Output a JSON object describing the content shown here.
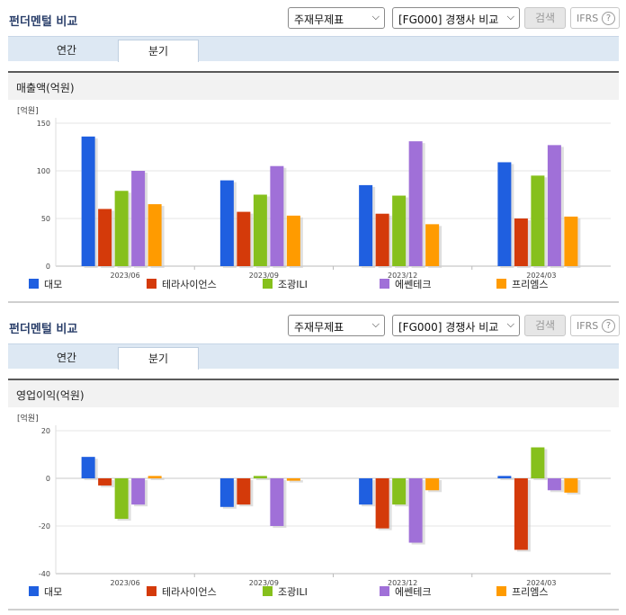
{
  "panels": [
    {
      "title": "펀더멘털 비교",
      "statement_select": "주재무제표",
      "compare_select": "[FG000] 경쟁사 비교",
      "search_button": "검색",
      "ifrs_button": "IFRS",
      "help_icon_glyph": "?",
      "tabs": [
        {
          "label": "연간"
        },
        {
          "label": "분기"
        }
      ],
      "active_tab": "분기",
      "section_title": "매출액(억원)"
    },
    {
      "title": "펀더멘털 비교",
      "statement_select": "주재무제표",
      "compare_select": "[FG000] 경쟁사 비교",
      "search_button": "검색",
      "ifrs_button": "IFRS",
      "help_icon_glyph": "?",
      "tabs": [
        {
          "label": "연간"
        },
        {
          "label": "분기"
        }
      ],
      "active_tab": "분기",
      "section_title": "영업이익(억원)"
    }
  ],
  "chart_data": [
    {
      "type": "bar",
      "title": "매출액(억원)",
      "unit_label": "[억원]",
      "categories": [
        "2023/06",
        "2023/09",
        "2023/12",
        "2024/03"
      ],
      "ylim": [
        0,
        150
      ],
      "yticks": [
        0,
        50,
        100,
        150
      ],
      "grid": true,
      "legend_position": "bottom",
      "series": [
        {
          "name": "대모",
          "color": "#1f5fe0",
          "values": [
            136,
            90,
            85,
            109
          ]
        },
        {
          "name": "테라사이언스",
          "color": "#d43a0a",
          "values": [
            60,
            57,
            55,
            50
          ]
        },
        {
          "name": "조광ILI",
          "color": "#86c01c",
          "values": [
            79,
            75,
            74,
            95
          ]
        },
        {
          "name": "에쎈테크",
          "color": "#a070d8",
          "values": [
            100,
            105,
            131,
            127
          ]
        },
        {
          "name": "프리엠스",
          "color": "#ff9b00",
          "values": [
            65,
            53,
            44,
            52
          ]
        }
      ]
    },
    {
      "type": "bar",
      "title": "영업이익(억원)",
      "unit_label": "[억원]",
      "categories": [
        "2023/06",
        "2023/09",
        "2023/12",
        "2024/03"
      ],
      "ylim": [
        -40,
        20
      ],
      "yticks": [
        -40,
        -20,
        0,
        20
      ],
      "grid": true,
      "legend_position": "bottom",
      "series": [
        {
          "name": "대모",
          "color": "#1f5fe0",
          "values": [
            9,
            -12,
            -11,
            1
          ]
        },
        {
          "name": "테라사이언스",
          "color": "#d43a0a",
          "values": [
            -3,
            -11,
            -21,
            -30
          ]
        },
        {
          "name": "조광ILI",
          "color": "#86c01c",
          "values": [
            -17,
            1,
            -11,
            13
          ]
        },
        {
          "name": "에쎈테크",
          "color": "#a070d8",
          "values": [
            -11,
            -20,
            -27,
            -5
          ]
        },
        {
          "name": "프리엠스",
          "color": "#ff9b00",
          "values": [
            1,
            -1,
            -5,
            -6
          ]
        }
      ]
    }
  ]
}
